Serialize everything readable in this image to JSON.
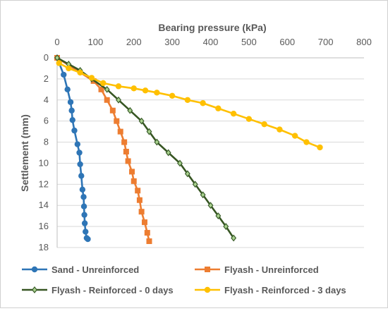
{
  "chart_data": {
    "type": "scatter",
    "title": "",
    "xlabel": "Bearing pressure (kPa)",
    "ylabel": "Settlement (mm)",
    "xlim": [
      0,
      800
    ],
    "ylim": [
      0,
      18
    ],
    "y_inverted": true,
    "x_axis_position": "top",
    "x_ticks": [
      0,
      100,
      200,
      300,
      400,
      500,
      600,
      700,
      800
    ],
    "y_ticks": [
      0,
      2,
      4,
      6,
      8,
      10,
      12,
      14,
      16,
      18
    ],
    "grid": "horizontal",
    "legend_position": "bottom",
    "series": [
      {
        "name": "Sand - Unreinforced",
        "color": "#2e75b6",
        "marker": "circle",
        "x": [
          0,
          17,
          27,
          35,
          38,
          40,
          45,
          53,
          58,
          60,
          63,
          66,
          69,
          70,
          71,
          72,
          74,
          77,
          80
        ],
        "y": [
          0,
          1.6,
          3.0,
          4.2,
          5.0,
          5.9,
          6.9,
          8.2,
          9.0,
          10.1,
          11.2,
          12.5,
          13.2,
          14.1,
          14.9,
          15.7,
          16.5,
          17.1,
          17.2
        ]
      },
      {
        "name": "Flyash - Unreinforced",
        "color": "#ed7d31",
        "marker": "square",
        "x": [
          0,
          95,
          115,
          130,
          145,
          155,
          165,
          175,
          180,
          185,
          195,
          200,
          210,
          215,
          220,
          228,
          235,
          240
        ],
        "y": [
          0,
          2.2,
          3.0,
          4.0,
          5.0,
          6.0,
          7.0,
          8.0,
          8.9,
          9.8,
          10.8,
          11.7,
          12.6,
          13.5,
          14.6,
          15.6,
          16.6,
          17.4
        ]
      },
      {
        "name": "Flyash - Reinforced - 0 days",
        "color": "#3b5e2b",
        "line_color": "#375623",
        "marker": "diamond",
        "x": [
          0,
          30,
          60,
          90,
          130,
          160,
          190,
          220,
          240,
          260,
          290,
          320,
          340,
          360,
          380,
          400,
          420,
          440,
          460
        ],
        "y": [
          0,
          0.6,
          1.2,
          2.0,
          3.0,
          4.0,
          5.0,
          6.0,
          7.0,
          8.0,
          9.0,
          10.0,
          11.0,
          12.0,
          13.0,
          14.0,
          15.0,
          16.0,
          17.1
        ]
      },
      {
        "name": "Flyash - Reinforced - 3 days",
        "color": "#ffc000",
        "marker": "circle",
        "x": [
          5,
          30,
          60,
          90,
          120,
          160,
          200,
          230,
          260,
          300,
          340,
          380,
          420,
          460,
          500,
          540,
          580,
          620,
          650,
          685
        ],
        "y": [
          0.5,
          1.0,
          1.4,
          1.9,
          2.4,
          2.7,
          2.9,
          3.1,
          3.3,
          3.6,
          4.0,
          4.3,
          4.8,
          5.3,
          5.8,
          6.3,
          6.8,
          7.4,
          8.0,
          8.5
        ]
      }
    ]
  }
}
